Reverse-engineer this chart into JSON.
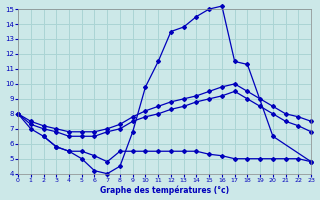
{
  "title": "Graphe des températures (°c)",
  "bg_color": "#cce8e8",
  "grid_color": "#aad4d4",
  "line_color": "#0000bb",
  "xlim": [
    0,
    23
  ],
  "ylim": [
    4,
    15
  ],
  "xticks": [
    0,
    1,
    2,
    3,
    4,
    5,
    6,
    7,
    8,
    9,
    10,
    11,
    12,
    13,
    14,
    15,
    16,
    17,
    18,
    19,
    20,
    21,
    22,
    23
  ],
  "yticks": [
    4,
    5,
    6,
    7,
    8,
    9,
    10,
    11,
    12,
    13,
    14,
    15
  ],
  "line1": {
    "x": [
      0,
      1,
      2,
      3,
      4,
      5,
      6,
      7,
      8,
      9,
      10,
      11,
      12,
      13,
      14,
      15,
      16,
      17,
      18,
      20,
      23
    ],
    "y": [
      8.0,
      7.0,
      6.5,
      5.8,
      5.5,
      5.0,
      4.2,
      4.0,
      4.5,
      6.8,
      9.8,
      11.5,
      13.5,
      13.8,
      14.5,
      15.0,
      15.2,
      11.5,
      11.3,
      6.5,
      4.8
    ]
  },
  "line2": {
    "x": [
      0,
      1,
      2,
      3,
      4,
      5,
      6,
      7,
      8,
      9,
      10,
      11,
      12,
      13,
      14,
      15,
      16,
      17,
      18,
      19,
      20,
      21,
      22,
      23
    ],
    "y": [
      8.0,
      7.5,
      7.2,
      7.0,
      6.8,
      6.8,
      6.8,
      7.0,
      7.3,
      7.8,
      8.2,
      8.5,
      8.8,
      9.0,
      9.2,
      9.5,
      9.8,
      10.0,
      9.5,
      9.0,
      8.5,
      8.0,
      7.8,
      7.5
    ]
  },
  "line3": {
    "x": [
      0,
      1,
      2,
      3,
      4,
      5,
      6,
      7,
      8,
      9,
      10,
      11,
      12,
      13,
      14,
      15,
      16,
      17,
      18,
      19,
      20,
      21,
      22,
      23
    ],
    "y": [
      8.0,
      7.3,
      7.0,
      6.8,
      6.5,
      6.5,
      6.5,
      6.8,
      7.0,
      7.5,
      7.8,
      8.0,
      8.3,
      8.5,
      8.8,
      9.0,
      9.2,
      9.5,
      9.0,
      8.5,
      8.0,
      7.5,
      7.2,
      6.8
    ]
  },
  "line4": {
    "x": [
      2,
      3,
      4,
      5,
      6,
      7,
      8,
      9,
      10,
      11,
      12,
      13,
      14,
      15,
      16,
      17,
      18,
      19,
      20,
      21,
      22,
      23
    ],
    "y": [
      6.5,
      5.8,
      5.5,
      5.5,
      5.2,
      4.8,
      5.5,
      5.5,
      5.5,
      5.5,
      5.5,
      5.5,
      5.5,
      5.3,
      5.2,
      5.0,
      5.0,
      5.0,
      5.0,
      5.0,
      5.0,
      4.8
    ]
  }
}
